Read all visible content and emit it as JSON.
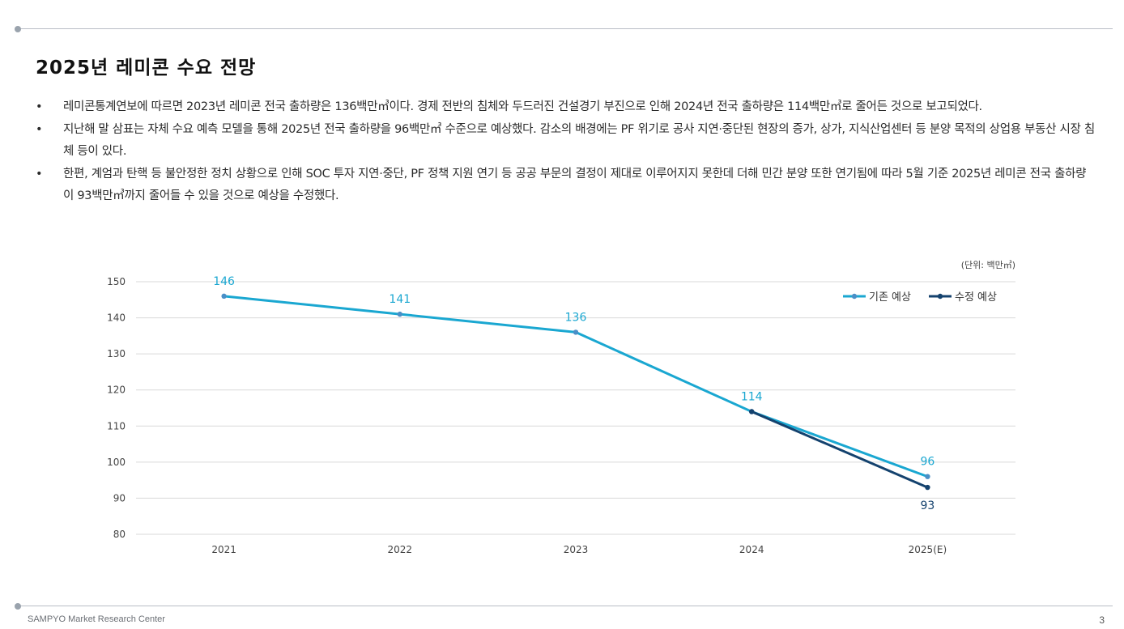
{
  "title": "2025년 레미콘 수요 전망",
  "bullets": [
    {
      "symbol": "•",
      "text": "레미콘통계연보에 따르면 2023년 레미콘 전국 출하량은 136백만㎥이다. 경제 전반의 침체와 두드러진 건설경기 부진으로 인해 2024년 전국 출하량은 114백만㎥로 줄어든 것으로 보고되었다."
    },
    {
      "symbol": "•",
      "text": "지난해 말 삼표는 자체 수요 예측 모델을 통해 2025년 전국 출하량을 96백만㎥ 수준으로 예상했다. 감소의 배경에는 PF 위기로 공사 지연·중단된 현장의 증가, 상가, 지식산업센터 등 분양 목적의 상업용 부동산 시장 침체 등이 있다."
    },
    {
      "symbol": "•",
      "text": "한편, 계엄과 탄핵 등 불안정한 정치 상황으로 인해 SOC 투자 지연·중단, PF 정책 지원 연기 등 공공 부문의 결정이 제대로 이루어지지 못한데 더해 민간 분양 또한 연기됨에 따라 5월 기준 2025년 레미콘 전국 출하량이 93백만㎥까지 줄어들 수 있을 것으로 예상을 수정했다."
    }
  ],
  "chart_data": {
    "type": "line",
    "unit_label": "(단위: 백만㎥)",
    "categories": [
      "2021",
      "2022",
      "2023",
      "2024",
      "2025(E)"
    ],
    "ylim": [
      80,
      150
    ],
    "yticks": [
      80,
      90,
      100,
      110,
      120,
      130,
      140,
      150
    ],
    "grid": true,
    "legend_position": "top-right",
    "series": [
      {
        "name": "기존 예상",
        "color": "#1aa7d1",
        "values": [
          146,
          141,
          136,
          114,
          96
        ]
      },
      {
        "name": "수정 예상",
        "color": "#14426e",
        "values": [
          null,
          null,
          null,
          114,
          93
        ]
      }
    ]
  },
  "footer": "SAMPYO Market Research Center",
  "page_number": "3"
}
